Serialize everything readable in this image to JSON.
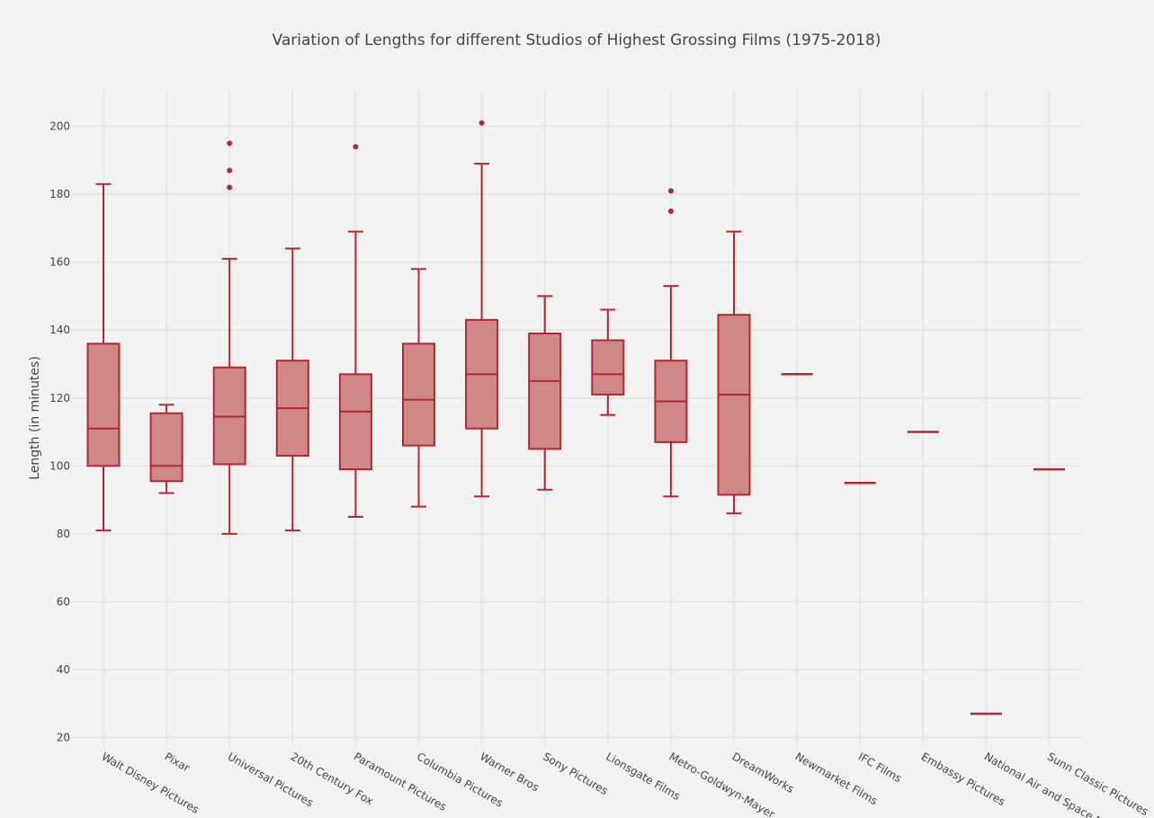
{
  "chart_data": {
    "type": "box",
    "title": "Variation of Lengths for different Studios of Highest Grossing Films (1975-2018)",
    "xlabel": "",
    "ylabel": "Length (in minutes)",
    "ylim": [
      20,
      210
    ],
    "yticks": [
      20,
      40,
      60,
      80,
      100,
      120,
      140,
      160,
      180,
      200
    ],
    "grid": true,
    "legend": "none",
    "colors": {
      "box_fill": "#d08787",
      "box_line": "#b2282e",
      "grid": "#e3e3e3",
      "background": "#f2f2f2"
    },
    "categories": [
      "Walt Disney Pictures",
      "Pixar",
      "Universal Pictures",
      "20th Century Fox",
      "Paramount Pictures",
      "Columbia Pictures",
      "Warner Bros",
      "Sony Pictures",
      "Lionsgate Films",
      "Metro-Goldwyn-Mayer",
      "DreamWorks",
      "Newmarket Films",
      "IFC Films",
      "Embassy Pictures",
      "National Air and Space Museum",
      "Sunn Classic Pictures"
    ],
    "boxes": [
      {
        "category": "Walt Disney Pictures",
        "min": 81,
        "q1": 100,
        "median": 111,
        "q3": 136,
        "max": 183,
        "outliers": []
      },
      {
        "category": "Pixar",
        "min": 92,
        "q1": 95.5,
        "median": 100,
        "q3": 115.5,
        "max": 118,
        "outliers": []
      },
      {
        "category": "Universal Pictures",
        "min": 80,
        "q1": 100.5,
        "median": 114.5,
        "q3": 129,
        "max": 161,
        "outliers": [
          182,
          187,
          195
        ]
      },
      {
        "category": "20th Century Fox",
        "min": 81,
        "q1": 103,
        "median": 117,
        "q3": 131,
        "max": 164,
        "outliers": []
      },
      {
        "category": "Paramount Pictures",
        "min": 85,
        "q1": 99,
        "median": 116,
        "q3": 127,
        "max": 169,
        "outliers": [
          194
        ]
      },
      {
        "category": "Columbia Pictures",
        "min": 88,
        "q1": 106,
        "median": 119.5,
        "q3": 136,
        "max": 158,
        "outliers": []
      },
      {
        "category": "Warner Bros",
        "min": 91,
        "q1": 111,
        "median": 127,
        "q3": 143,
        "max": 189,
        "outliers": [
          201
        ]
      },
      {
        "category": "Sony Pictures",
        "min": 93,
        "q1": 105,
        "median": 125,
        "q3": 139,
        "max": 150,
        "outliers": []
      },
      {
        "category": "Lionsgate Films",
        "min": 115,
        "q1": 121,
        "median": 127,
        "q3": 137,
        "max": 146,
        "outliers": []
      },
      {
        "category": "Metro-Goldwyn-Mayer",
        "min": 91,
        "q1": 107,
        "median": 119,
        "q3": 131,
        "max": 153,
        "outliers": [
          175,
          181
        ]
      },
      {
        "category": "DreamWorks",
        "min": 86,
        "q1": 91.5,
        "median": 121,
        "q3": 144.5,
        "max": 169,
        "outliers": []
      },
      {
        "category": "Newmarket Films",
        "min": 127,
        "q1": 127,
        "median": 127,
        "q3": 127,
        "max": 127,
        "outliers": []
      },
      {
        "category": "IFC Films",
        "min": 95,
        "q1": 95,
        "median": 95,
        "q3": 95,
        "max": 95,
        "outliers": []
      },
      {
        "category": "Embassy Pictures",
        "min": 110,
        "q1": 110,
        "median": 110,
        "q3": 110,
        "max": 110,
        "outliers": []
      },
      {
        "category": "National Air and Space Museum",
        "min": 27,
        "q1": 27,
        "median": 27,
        "q3": 27,
        "max": 27,
        "outliers": []
      },
      {
        "category": "Sunn Classic Pictures",
        "min": 99,
        "q1": 99,
        "median": 99,
        "q3": 99,
        "max": 99,
        "outliers": []
      }
    ]
  }
}
